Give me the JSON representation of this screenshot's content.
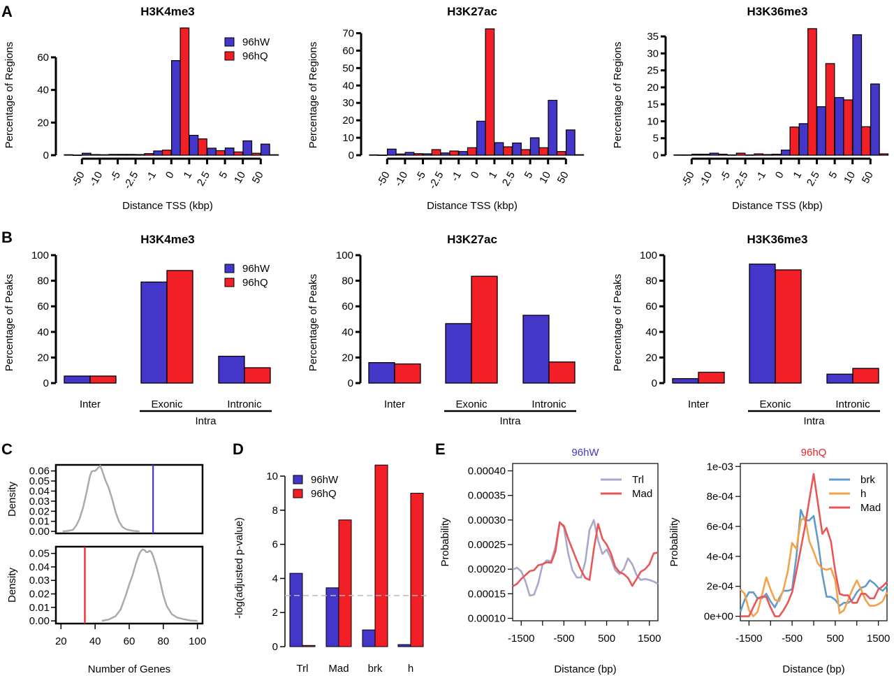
{
  "colors": {
    "w": "#4436c8",
    "q": "#f21f27",
    "density": "#aaaaaa",
    "threshold": "#bbbbbb",
    "trl": "#a9a8cc",
    "mad": "#ea5656",
    "brk": "#5f9bcb",
    "h": "#f3a24a",
    "title_w": "#4436c8",
    "title_q": "#e8222a"
  },
  "panels": {
    "A": "A",
    "B": "B",
    "C": "C",
    "D": "D",
    "E": "E"
  },
  "chart_data": [
    {
      "id": "A1",
      "panel": "A",
      "type": "bar",
      "title": "H3K4me3",
      "xlabel": "Distance TSS (kbp)",
      "ylabel": "Percentage of Regions",
      "ylim": [
        0,
        78
      ],
      "yticks": [
        0,
        20,
        40,
        60
      ],
      "xticks": [
        "-50",
        "-10",
        "-5",
        "-2.5",
        "-1",
        "0",
        "1",
        "2.5",
        "5",
        "10",
        "50"
      ],
      "legend": [
        "96hW",
        "96hQ"
      ],
      "legend_position": "top-right",
      "series": [
        {
          "name": "96hW",
          "values": [
            0.3,
            1.2,
            0.3,
            0.5,
            0.4,
            2.6,
            58,
            12.2,
            4.3,
            4.4,
            8.8,
            6.8
          ]
        },
        {
          "name": "96hQ",
          "values": [
            0.1,
            0.4,
            0.5,
            0.5,
            1.0,
            3.1,
            78,
            10,
            2.8,
            2.0,
            1.2,
            0.3
          ]
        }
      ]
    },
    {
      "id": "A2",
      "panel": "A",
      "type": "bar",
      "title": "H3K27ac",
      "xlabel": "Distance TSS (kbp)",
      "ylabel": "Percentage of Regions",
      "ylim": [
        0,
        73
      ],
      "yticks": [
        0,
        10,
        20,
        30,
        40,
        50,
        60,
        70
      ],
      "xticks": [
        "-50",
        "-10",
        "-5",
        "-2.5",
        "-1",
        "0",
        "1",
        "2.5",
        "5",
        "10",
        "50"
      ],
      "series": [
        {
          "name": "96hW",
          "values": [
            0.2,
            3.5,
            1.6,
            0.8,
            1.3,
            2.1,
            19.5,
            7.2,
            7.0,
            10.0,
            31.5,
            14.5
          ]
        },
        {
          "name": "96hQ",
          "values": [
            0.1,
            0.7,
            0.9,
            3.2,
            2.4,
            4.3,
            72.5,
            4.8,
            3.2,
            4.3,
            2.1,
            0.3
          ]
        }
      ]
    },
    {
      "id": "A3",
      "panel": "A",
      "type": "bar",
      "title": "H3K36me3",
      "xlabel": "Distance TSS (kbp)",
      "ylabel": "Percentage of Regions",
      "ylim": [
        0,
        37.5
      ],
      "yticks": [
        0,
        5,
        10,
        15,
        20,
        25,
        30,
        35
      ],
      "xticks": [
        "-50",
        "-10",
        "-5",
        "-2.5",
        "-1",
        "0",
        "1",
        "2.5",
        "5",
        "10",
        "50"
      ],
      "series": [
        {
          "name": "96hW",
          "values": [
            0.1,
            0.3,
            0.6,
            0.1,
            0.1,
            0.2,
            1.5,
            9.3,
            14.3,
            17.0,
            35.5,
            21.0
          ]
        },
        {
          "name": "96hQ",
          "values": [
            0.1,
            0.3,
            0.3,
            0.6,
            0.4,
            0.3,
            8.3,
            37.3,
            27.0,
            16.3,
            8.4,
            0.4
          ]
        }
      ]
    },
    {
      "id": "B1",
      "panel": "B",
      "type": "bar",
      "title": "H3K4me3",
      "ylabel": "Percentage of Peaks",
      "ylim": [
        0,
        100
      ],
      "yticks": [
        0,
        20,
        40,
        60,
        80,
        100
      ],
      "categories": [
        "Inter",
        "Exonic",
        "Intronic"
      ],
      "group_label": "Intra",
      "legend": [
        "96hW",
        "96hQ"
      ],
      "legend_position": "top-right",
      "series": [
        {
          "name": "96hW",
          "values": [
            5.5,
            79,
            21
          ]
        },
        {
          "name": "96hQ",
          "values": [
            5.5,
            88,
            12
          ]
        }
      ]
    },
    {
      "id": "B2",
      "panel": "B",
      "type": "bar",
      "title": "H3K27ac",
      "ylabel": "Percentage of Peaks",
      "ylim": [
        0,
        100
      ],
      "yticks": [
        0,
        20,
        40,
        60,
        80,
        100
      ],
      "categories": [
        "Inter",
        "Exonic",
        "Intronic"
      ],
      "group_label": "Intra",
      "series": [
        {
          "name": "96hW",
          "values": [
            16,
            46.5,
            53
          ]
        },
        {
          "name": "96hQ",
          "values": [
            15,
            83.5,
            16.5
          ]
        }
      ]
    },
    {
      "id": "B3",
      "panel": "B",
      "type": "bar",
      "title": "H3K36me3",
      "ylabel": "Percentage of Peaks",
      "ylim": [
        0,
        100
      ],
      "yticks": [
        0,
        20,
        40,
        60,
        80,
        100
      ],
      "categories": [
        "Inter",
        "Exonic",
        "Intronic"
      ],
      "group_label": "Intra",
      "series": [
        {
          "name": "96hW",
          "values": [
            3.5,
            93,
            7
          ]
        },
        {
          "name": "96hQ",
          "values": [
            8.5,
            88.5,
            11.5
          ]
        }
      ]
    },
    {
      "id": "C1",
      "panel": "C",
      "type": "line",
      "ylabel": "Density",
      "xlim": [
        17,
        103
      ],
      "ylim": [
        -0.002,
        0.066
      ],
      "yticks": [
        "0.00",
        "0.01",
        "0.02",
        "0.03",
        "0.04",
        "0.05",
        "0.06"
      ],
      "observed": 74,
      "observed_series": "96hW",
      "x": [
        21,
        24,
        27,
        29,
        31,
        33,
        35,
        37,
        38,
        39,
        40,
        41,
        42,
        43,
        44,
        46,
        48,
        50,
        52,
        54,
        56,
        58,
        60,
        63,
        66
      ],
      "y": [
        0.0,
        0.0005,
        0.0015,
        0.006,
        0.013,
        0.024,
        0.039,
        0.055,
        0.0595,
        0.06,
        0.06,
        0.0615,
        0.0635,
        0.065,
        0.061,
        0.051,
        0.043,
        0.032,
        0.019,
        0.01,
        0.0045,
        0.0022,
        0.0012,
        0.0004,
        0.0
      ]
    },
    {
      "id": "C2",
      "panel": "C",
      "type": "line",
      "ylabel": "Density",
      "xlabel": "Number of Genes",
      "xlim": [
        17,
        103
      ],
      "ylim": [
        -0.002,
        0.055
      ],
      "yticks": [
        "0.00",
        "0.01",
        "0.02",
        "0.03",
        "0.04",
        "0.05"
      ],
      "xticks": [
        20,
        40,
        60,
        80,
        100
      ],
      "observed": 34,
      "observed_series": "96hQ",
      "x": [
        44,
        48,
        52,
        55,
        58,
        60,
        62,
        64,
        66,
        67,
        68,
        69,
        70,
        71,
        72,
        73,
        74,
        76,
        78,
        80,
        82,
        85,
        88,
        92,
        96,
        100
      ],
      "y": [
        0.0,
        0.001,
        0.0035,
        0.0085,
        0.019,
        0.027,
        0.034,
        0.043,
        0.05,
        0.052,
        0.053,
        0.0525,
        0.051,
        0.051,
        0.052,
        0.051,
        0.048,
        0.04,
        0.03,
        0.019,
        0.011,
        0.005,
        0.0025,
        0.0012,
        0.0003,
        0.0
      ]
    },
    {
      "id": "D",
      "panel": "D",
      "type": "bar",
      "ylabel": "-log(adjusted p-value)",
      "ylim": [
        0,
        10.7
      ],
      "yticks": [
        0,
        2,
        4,
        6,
        8,
        10
      ],
      "categories": [
        "Trl",
        "Mad",
        "brk",
        "h"
      ],
      "threshold": 3,
      "legend": [
        "96hW",
        "96hQ"
      ],
      "legend_position": "top-left",
      "series": [
        {
          "name": "96hW",
          "values": [
            4.3,
            3.45,
            0.98,
            0.12
          ]
        },
        {
          "name": "96hQ",
          "values": [
            0.07,
            7.43,
            10.65,
            9.0
          ]
        }
      ]
    },
    {
      "id": "E1",
      "panel": "E",
      "type": "line",
      "title": "96hW",
      "title_color": "#4436c8",
      "xlabel": "Distance (bp)",
      "ylabel": "Probability",
      "xlim": [
        -1700,
        1700
      ],
      "ylim": [
        9.5e-05,
        0.000415
      ],
      "xticks": [
        -1500,
        -500,
        500,
        1500
      ],
      "xticks_minor": [
        -1000,
        0,
        1000
      ],
      "yticks": [
        "0.00010",
        "0.00015",
        "0.00020",
        "0.00025",
        "0.00030",
        "0.00035",
        "0.00040"
      ],
      "ytick_values": [
        0.0001,
        0.00015,
        0.0002,
        0.00025,
        0.0003,
        0.00035,
        0.0004
      ],
      "legend": [
        "Trl",
        "Mad"
      ],
      "legend_position": "top-right",
      "series": [
        {
          "name": "Trl",
          "color": "#a9a8cc",
          "x": [
            -1700,
            -1600,
            -1500,
            -1400,
            -1300,
            -1200,
            -1100,
            -1000,
            -900,
            -800,
            -700,
            -600,
            -500,
            -400,
            -300,
            -200,
            -100,
            0,
            100,
            200,
            300,
            400,
            500,
            600,
            700,
            800,
            900,
            1000,
            1100,
            1200,
            1300,
            1400,
            1500,
            1600,
            1700
          ],
          "y": [
            0.000199,
            0.000203,
            0.000196,
            0.000175,
            0.000146,
            0.000148,
            0.000172,
            0.000209,
            0.000218,
            0.000216,
            0.000245,
            0.000296,
            0.000285,
            0.000232,
            0.000198,
            0.000183,
            0.000183,
            0.000215,
            0.00028,
            0.0003,
            0.000258,
            0.000231,
            0.00024,
            0.000222,
            0.000198,
            0.00019,
            0.0002,
            0.000222,
            0.00021,
            0.000188,
            0.000178,
            0.00018,
            0.000178,
            0.000175,
            0.00017
          ]
        },
        {
          "name": "Mad",
          "color": "#ea5656",
          "x": [
            -1700,
            -1600,
            -1500,
            -1400,
            -1300,
            -1200,
            -1100,
            -1000,
            -900,
            -800,
            -700,
            -600,
            -500,
            -400,
            -300,
            -200,
            -100,
            0,
            100,
            200,
            300,
            400,
            500,
            600,
            700,
            800,
            900,
            1000,
            1100,
            1200,
            1300,
            1400,
            1500,
            1600,
            1700
          ],
          "y": [
            0.000165,
            0.00017,
            0.00018,
            0.000188,
            0.000196,
            0.000198,
            0.000208,
            0.00021,
            0.000214,
            0.000213,
            0.000236,
            0.000295,
            0.000288,
            0.000262,
            0.00024,
            0.000218,
            0.000198,
            0.000182,
            0.000178,
            0.00024,
            0.000292,
            0.000262,
            0.00025,
            0.000232,
            0.000205,
            0.000194,
            0.00019,
            0.000182,
            0.000166,
            0.00018,
            0.000195,
            0.0002,
            0.00021,
            0.000232,
            0.000234
          ]
        }
      ]
    },
    {
      "id": "E2",
      "panel": "E",
      "type": "line",
      "title": "96hQ",
      "title_color": "#e8222a",
      "xlabel": "Distance (bp)",
      "ylabel": "Probability",
      "xlim": [
        -1700,
        1700
      ],
      "ylim": [
        -3e-05,
        0.00102
      ],
      "xticks": [
        -1500,
        -500,
        500,
        1500
      ],
      "xticks_minor": [
        -1000,
        0,
        1000
      ],
      "yticks": [
        "0e+00",
        "2e-04",
        "4e-04",
        "6e-04",
        "8e-04",
        "1e-03"
      ],
      "ytick_values": [
        0,
        0.0002,
        0.0004,
        0.0006,
        0.0008,
        0.001
      ],
      "legend": [
        "brk",
        "h",
        "Mad"
      ],
      "legend_position": "top-right",
      "series": [
        {
          "name": "brk",
          "color": "#5f9bcb",
          "x": [
            -1700,
            -1600,
            -1500,
            -1400,
            -1300,
            -1200,
            -1100,
            -1000,
            -900,
            -800,
            -700,
            -600,
            -500,
            -400,
            -300,
            -200,
            -100,
            0,
            100,
            200,
            300,
            400,
            500,
            600,
            700,
            800,
            900,
            1000,
            1100,
            1200,
            1300,
            1400,
            1500,
            1600,
            1700
          ],
          "y": [
            3e-05,
            0.00011,
            0.00016,
            0.00016,
            0.00012,
            0.00012,
            0.00015,
            0.0001,
            6e-05,
            0.00012,
            0.00017,
            0.00017,
            0.00018,
            0.0004,
            0.00071,
            0.00064,
            0.00064,
            0.00067,
            0.0005,
            0.00028,
            0.00013,
            0.00013,
            0.00011,
            7e-05,
            9e-05,
            9e-05,
            0.00011,
            0.00016,
            0.00019,
            0.0002,
            0.00024,
            0.00022,
            0.00019,
            0.00017,
            0.0002
          ]
        },
        {
          "name": "h",
          "color": "#f3a24a",
          "x": [
            -1700,
            -1600,
            -1500,
            -1400,
            -1300,
            -1200,
            -1100,
            -1000,
            -900,
            -800,
            -700,
            -600,
            -500,
            -400,
            -300,
            -200,
            -100,
            0,
            100,
            200,
            300,
            400,
            500,
            600,
            700,
            800,
            900,
            1000,
            1100,
            1200,
            1300,
            1400,
            1500,
            1600,
            1700
          ],
          "y": [
            0.00018,
            0.00015,
            4e-05,
            0.0,
            3e-05,
            0.00014,
            0.00026,
            0.00018,
            0.00011,
            0.0001,
            0.00018,
            0.0003,
            0.00049,
            0.00045,
            0.00064,
            0.00066,
            0.0005,
            0.00043,
            0.00035,
            0.00032,
            0.00031,
            0.00032,
            0.00024,
            2e-05,
            4e-05,
            0.00011,
            0.00018,
            0.00024,
            0.00018,
            0.00011,
            7e-05,
            7e-05,
            8e-05,
            0.0001,
            0.00016
          ]
        },
        {
          "name": "Mad",
          "color": "#ea5656",
          "x": [
            -1700,
            -1600,
            -1500,
            -1400,
            -1300,
            -1200,
            -1100,
            -1000,
            -900,
            -800,
            -700,
            -600,
            -500,
            -400,
            -300,
            -200,
            -100,
            0,
            100,
            200,
            300,
            400,
            500,
            600,
            700,
            800,
            900,
            1000,
            1100,
            1200,
            1300,
            1400,
            1500,
            1600,
            1700
          ],
          "y": [
            0.0,
            0.0,
            0.0,
            6e-05,
            0.00012,
            0.00013,
            0.00013,
            6e-05,
            0.0,
            0.0,
            4e-05,
            9e-05,
            0.00016,
            0.0003,
            0.00045,
            0.0006,
            0.00078,
            0.00095,
            0.00075,
            0.00055,
            0.00059,
            0.0005,
            0.0003,
            0.00015,
            0.00014,
            0.00014,
            9e-05,
            9e-05,
            0.00015,
            0.00015,
            0.00012,
            0.00012,
            0.00018,
            0.0002,
            0.00023
          ]
        }
      ]
    }
  ]
}
